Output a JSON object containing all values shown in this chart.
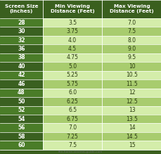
{
  "headers": [
    "Screen Size\n(Inches)",
    "Min Viewing\nDistance (Feet)",
    "Max Viewing\nDistance (Feet)"
  ],
  "rows": [
    [
      "28",
      "3.5",
      "7.0"
    ],
    [
      "30",
      "3.75",
      "7.5"
    ],
    [
      "32",
      "4.0",
      "8.0"
    ],
    [
      "36",
      "4.5",
      "9.0"
    ],
    [
      "38",
      "4.75",
      "9.5"
    ],
    [
      "40",
      "5.0",
      "10"
    ],
    [
      "42",
      "5.25",
      "10.5"
    ],
    [
      "46",
      "5.75",
      "11.5"
    ],
    [
      "48",
      "6.0",
      "12"
    ],
    [
      "50",
      "6.25",
      "12.5"
    ],
    [
      "52",
      "6.5",
      "13"
    ],
    [
      "54",
      "6.75",
      "13.5"
    ],
    [
      "56",
      "7.0",
      "14"
    ],
    [
      "58",
      "7.25",
      "14.5"
    ],
    [
      "60",
      "7.5",
      "15"
    ]
  ],
  "header_bg": "#3a5f1e",
  "row_colors": [
    "#d4edaa",
    "#a8cc6e"
  ],
  "col0_colors": [
    "#4a7c28",
    "#3a6020"
  ],
  "header_text_color": "#ffffff",
  "col0_text_color": "#ffffff",
  "data_text_color": "#2a3a10",
  "footer_text": "the-home-cinema-guide.com",
  "footer_color": "#666666",
  "divider_color": "#5a8030",
  "fig_bg": "#3a5f1e"
}
